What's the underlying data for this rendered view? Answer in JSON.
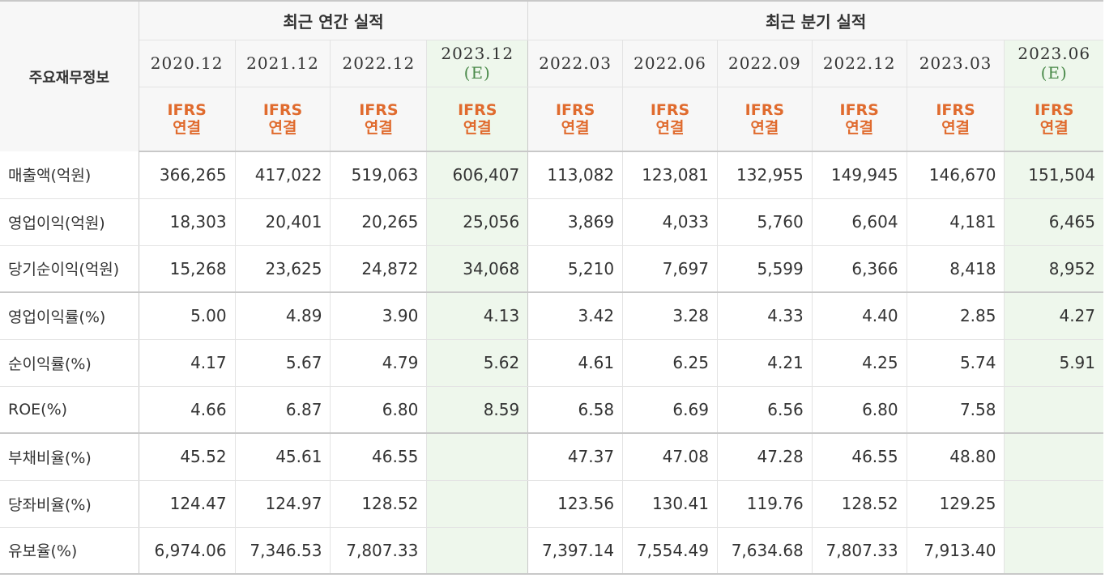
{
  "corner_label": "주요재무정보",
  "groups": {
    "annual": "최근 연간 실적",
    "quarterly": "최근 분기 실적"
  },
  "columns": [
    {
      "date": "2020.12",
      "est": "",
      "ifrs1": "IFRS",
      "ifrs2": "연결"
    },
    {
      "date": "2021.12",
      "est": "",
      "ifrs1": "IFRS",
      "ifrs2": "연결"
    },
    {
      "date": "2022.12",
      "est": "",
      "ifrs1": "IFRS",
      "ifrs2": "연결"
    },
    {
      "date": "2023.12",
      "est": "(E)",
      "ifrs1": "IFRS",
      "ifrs2": "연결"
    },
    {
      "date": "2022.03",
      "est": "",
      "ifrs1": "IFRS",
      "ifrs2": "연결"
    },
    {
      "date": "2022.06",
      "est": "",
      "ifrs1": "IFRS",
      "ifrs2": "연결"
    },
    {
      "date": "2022.09",
      "est": "",
      "ifrs1": "IFRS",
      "ifrs2": "연결"
    },
    {
      "date": "2022.12",
      "est": "",
      "ifrs1": "IFRS",
      "ifrs2": "연결"
    },
    {
      "date": "2023.03",
      "est": "",
      "ifrs1": "IFRS",
      "ifrs2": "연결"
    },
    {
      "date": "2023.06",
      "est": "(E)",
      "ifrs1": "IFRS",
      "ifrs2": "연결"
    }
  ],
  "rows": [
    {
      "label": "매출액(억원)",
      "values": [
        "366,265",
        "417,022",
        "519,063",
        "606,407",
        "113,082",
        "123,081",
        "132,955",
        "149,945",
        "146,670",
        "151,504"
      ]
    },
    {
      "label": "영업이익(억원)",
      "values": [
        "18,303",
        "20,401",
        "20,265",
        "25,056",
        "3,869",
        "4,033",
        "5,760",
        "6,604",
        "4,181",
        "6,465"
      ]
    },
    {
      "label": "당기순이익(억원)",
      "values": [
        "15,268",
        "23,625",
        "24,872",
        "34,068",
        "5,210",
        "7,697",
        "5,599",
        "6,366",
        "8,418",
        "8,952"
      ]
    },
    {
      "label": "영업이익률(%)",
      "values": [
        "5.00",
        "4.89",
        "3.90",
        "4.13",
        "3.42",
        "3.28",
        "4.33",
        "4.40",
        "2.85",
        "4.27"
      ]
    },
    {
      "label": "순이익률(%)",
      "values": [
        "4.17",
        "5.67",
        "4.79",
        "5.62",
        "4.61",
        "6.25",
        "4.21",
        "4.25",
        "5.74",
        "5.91"
      ]
    },
    {
      "label": "ROE(%)",
      "values": [
        "4.66",
        "6.87",
        "6.80",
        "8.59",
        "6.58",
        "6.69",
        "6.56",
        "6.80",
        "7.58",
        ""
      ]
    },
    {
      "label": "부채비율(%)",
      "values": [
        "45.52",
        "45.61",
        "46.55",
        "",
        "47.37",
        "47.08",
        "47.28",
        "46.55",
        "48.80",
        ""
      ]
    },
    {
      "label": "당좌비율(%)",
      "values": [
        "124.47",
        "124.97",
        "128.52",
        "",
        "123.56",
        "130.41",
        "119.76",
        "128.52",
        "129.25",
        ""
      ]
    },
    {
      "label": "유보율(%)",
      "values": [
        "6,974.06",
        "7,346.53",
        "7,807.33",
        "",
        "7,397.14",
        "7,554.49",
        "7,634.68",
        "7,807.33",
        "7,913.40",
        ""
      ]
    }
  ],
  "colors": {
    "ifrs": "#e06b2e",
    "estimate": "#4a8a4a",
    "estimate_bg": "#eef7ec"
  }
}
